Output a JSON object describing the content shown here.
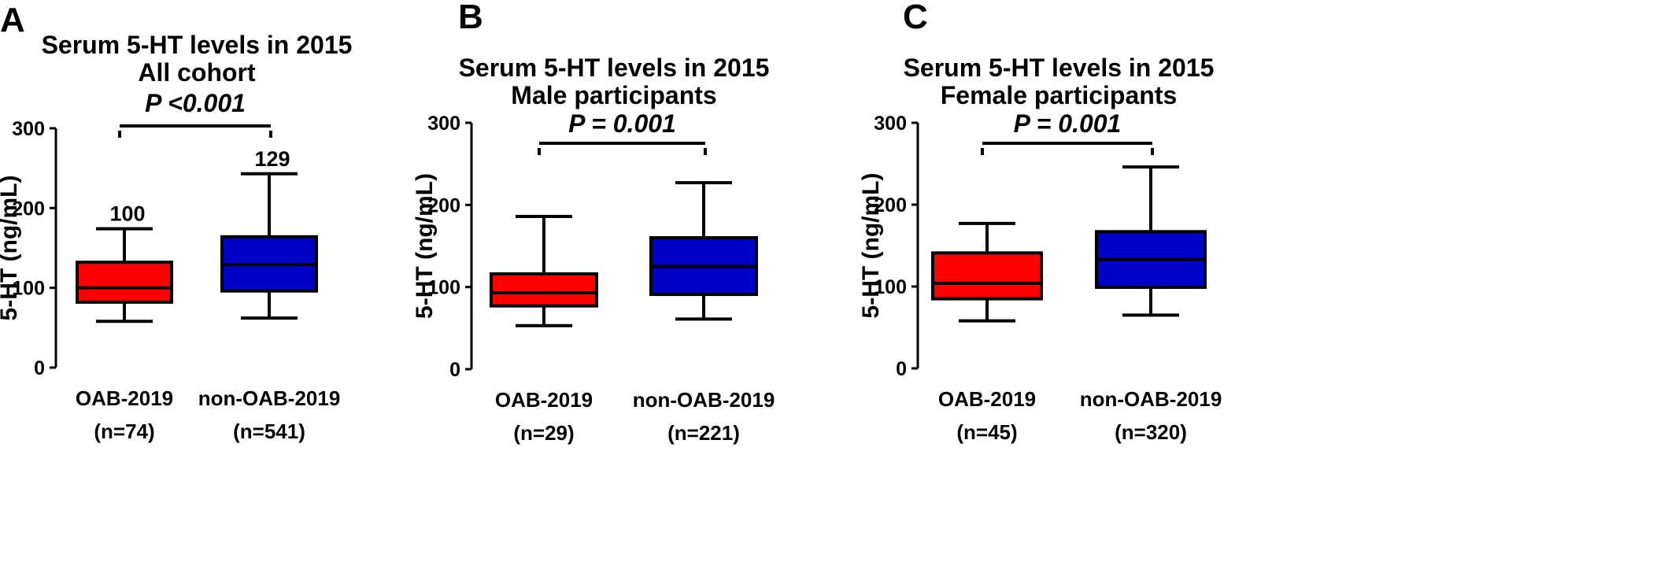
{
  "colors": {
    "group1": "#ff0000",
    "group2": "#0000c8",
    "ink": "#000000"
  },
  "chart_data": [
    {
      "type": "box",
      "panel": "A",
      "title": [
        "Serum 5-HT levels in 2015",
        "All cohort"
      ],
      "p_value": "P <0.001",
      "ylabel": "5-HT (ng/mL)",
      "ylim": [
        0,
        300
      ],
      "yticks": [
        "0",
        "100",
        "200",
        "300"
      ],
      "grid": false,
      "categories": [
        {
          "label": "OAB-2019",
          "n": "(n=74)",
          "color": "#ff0000",
          "min": 58,
          "q1": 82,
          "median": 100,
          "q3": 132,
          "max": 174,
          "annotation": "100"
        },
        {
          "label": "non-OAB-2019",
          "n": "(n=541)",
          "color": "#0000c8",
          "min": 62,
          "q1": 96,
          "median": 129,
          "q3": 164,
          "max": 243,
          "annotation": "129"
        }
      ]
    },
    {
      "type": "box",
      "panel": "B",
      "title": [
        "Serum 5-HT levels in 2015",
        "Male participants"
      ],
      "p_value": "P = 0.001",
      "ylabel": "5-HT (ng/mL)",
      "ylim": [
        0,
        300
      ],
      "yticks": [
        "0",
        "100",
        "200",
        "300"
      ],
      "grid": false,
      "categories": [
        {
          "label": "OAB-2019",
          "n": "(n=29)",
          "color": "#ff0000",
          "min": 53,
          "q1": 77,
          "median": 93,
          "q3": 116,
          "max": 186
        },
        {
          "label": "non-OAB-2019",
          "n": "(n=221)",
          "color": "#0000c8",
          "min": 61,
          "q1": 91,
          "median": 125,
          "q3": 160,
          "max": 227
        }
      ]
    },
    {
      "type": "box",
      "panel": "C",
      "title": [
        "Serum 5-HT levels in 2015",
        "Female participants"
      ],
      "p_value": "P = 0.001",
      "ylabel": "5-HT (ng/mL)",
      "ylim": [
        0,
        300
      ],
      "yticks": [
        "0",
        "100",
        "200",
        "300"
      ],
      "grid": false,
      "categories": [
        {
          "label": "OAB-2019",
          "n": "(n=45)",
          "color": "#ff0000",
          "min": 58,
          "q1": 85,
          "median": 104,
          "q3": 141,
          "max": 177
        },
        {
          "label": "non-OAB-2019",
          "n": "(n=320)",
          "color": "#0000c8",
          "min": 65,
          "q1": 99,
          "median": 133,
          "q3": 167,
          "max": 246
        }
      ]
    }
  ]
}
